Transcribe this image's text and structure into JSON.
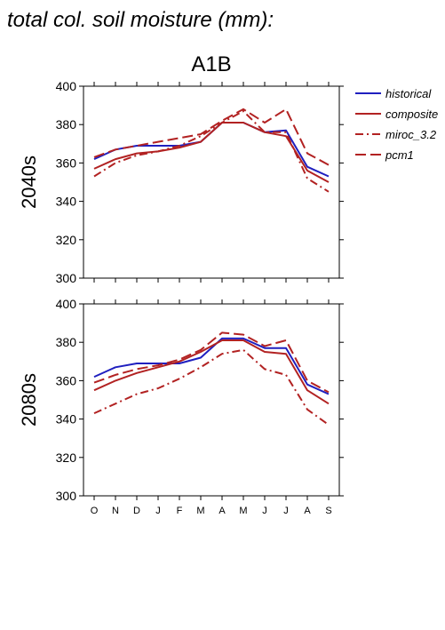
{
  "figure": {
    "title": "total col. soil moisture (mm):",
    "scenario": "A1B"
  },
  "legend": {
    "placement": "top-right",
    "entries": [
      {
        "label": "historical",
        "color": "#1f1fbf",
        "dash": "solid"
      },
      {
        "label": "composite",
        "color": "#b22222",
        "dash": "solid"
      },
      {
        "label": "miroc_3.2",
        "color": "#b22222",
        "dash": "dash-dot"
      },
      {
        "label": "pcm1",
        "color": "#b22222",
        "dash": "dashed"
      }
    ]
  },
  "chart_data": [
    {
      "type": "line",
      "ylabel": "2040s",
      "ylim": [
        300,
        400
      ],
      "yticks": [
        300,
        320,
        340,
        360,
        380,
        400
      ],
      "categories": [
        "O",
        "N",
        "D",
        "J",
        "F",
        "M",
        "A",
        "M",
        "J",
        "J",
        "A",
        "S"
      ],
      "series": [
        {
          "name": "historical",
          "values": [
            362,
            367,
            369,
            369,
            369,
            371,
            381,
            381,
            376,
            377,
            358,
            353
          ]
        },
        {
          "name": "composite",
          "values": [
            357,
            362,
            365,
            366,
            368,
            371,
            381,
            381,
            376,
            374,
            356,
            350
          ]
        },
        {
          "name": "miroc_3.2",
          "values": [
            353,
            360,
            364,
            366,
            369,
            374,
            381,
            387,
            376,
            376,
            352,
            345
          ]
        },
        {
          "name": "pcm1",
          "values": [
            363,
            367,
            369,
            371,
            373,
            375,
            382,
            388,
            381,
            388,
            365,
            359
          ]
        }
      ]
    },
    {
      "type": "line",
      "ylabel": "2080s",
      "ylim": [
        300,
        400
      ],
      "yticks": [
        300,
        320,
        340,
        360,
        380,
        400
      ],
      "categories": [
        "O",
        "N",
        "D",
        "J",
        "F",
        "M",
        "A",
        "M",
        "J",
        "J",
        "A",
        "S"
      ],
      "series": [
        {
          "name": "historical",
          "values": [
            362,
            367,
            369,
            369,
            369,
            372,
            382,
            382,
            377,
            377,
            358,
            353
          ]
        },
        {
          "name": "composite",
          "values": [
            355,
            360,
            364,
            367,
            370,
            375,
            381,
            381,
            375,
            374,
            355,
            348
          ]
        },
        {
          "name": "miroc_3.2",
          "values": [
            343,
            348,
            353,
            356,
            361,
            367,
            374,
            376,
            366,
            363,
            345,
            337
          ]
        },
        {
          "name": "pcm1",
          "values": [
            359,
            363,
            366,
            368,
            371,
            376,
            385,
            384,
            378,
            381,
            360,
            354
          ]
        }
      ]
    }
  ]
}
